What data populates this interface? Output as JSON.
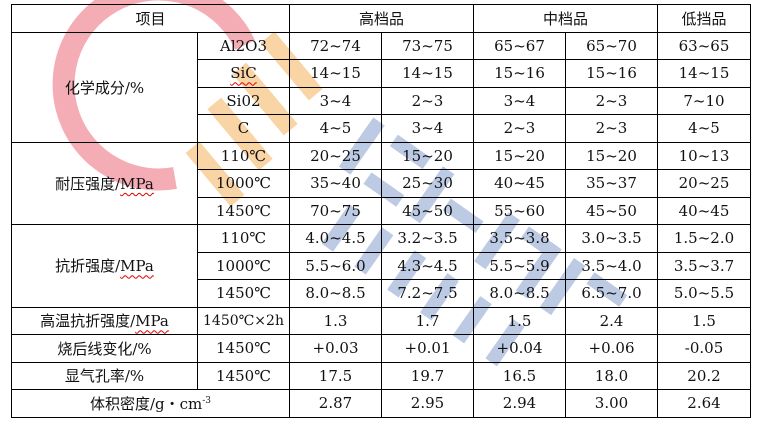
{
  "header": {
    "item": "项目",
    "high": "高档品",
    "mid": "中档品",
    "low": "低挡品"
  },
  "groups": {
    "chem": "化学成分/%",
    "crush": "耐压强度/MPa",
    "flex": "抗折强度/MPa"
  },
  "chem_rows": [
    {
      "label": "Al2O3",
      "values": [
        "72~74",
        "73~75",
        "65~67",
        "65~70",
        "63~65"
      ]
    },
    {
      "label": "SiC",
      "values": [
        "14~15",
        "14~15",
        "15~16",
        "15~16",
        "14~15"
      ]
    },
    {
      "label": "Si02",
      "values": [
        "3~4",
        "2~3",
        "3~4",
        "2~3",
        "7~10"
      ]
    },
    {
      "label": "C",
      "values": [
        "4~5",
        "3~4",
        "2~3",
        "2~3",
        "4~5"
      ]
    }
  ],
  "crush_rows": [
    {
      "label": "110℃",
      "values": [
        "20~25",
        "15~20",
        "15~20",
        "15~20",
        "10~13"
      ]
    },
    {
      "label": "1000℃",
      "values": [
        "35~40",
        "25~30",
        "40~45",
        "35~37",
        "20~25"
      ]
    },
    {
      "label": "1450℃",
      "values": [
        "70~75",
        "45~50",
        "55~60",
        "45~50",
        "40~45"
      ]
    }
  ],
  "flex_rows": [
    {
      "label": "110℃",
      "values": [
        "4.0~4.5",
        "3.2~3.5",
        "3.5~3.8",
        "3.0~3.5",
        "1.5~2.0"
      ]
    },
    {
      "label": "1000℃",
      "values": [
        "5.5~6.0",
        "4.3~4.5",
        "5.5~5.9",
        "3.5~4.0",
        "3.5~3.7"
      ]
    },
    {
      "label": "1450℃",
      "values": [
        "8.0~8.5",
        "7.2~7.5",
        "8.0~8.5",
        "6.5~7.0",
        "5.0~5.5"
      ]
    }
  ],
  "single_rows": [
    {
      "label": "高温抗折强度/MPa",
      "cond": "1450℃×2h",
      "values": [
        "1.3",
        "1.7",
        "1.5",
        "2.4",
        "1.5"
      ]
    },
    {
      "label": "烧后线变化/%",
      "cond": "1450℃",
      "values": [
        "+0.03",
        "+0.01",
        "+0.04",
        "+0.06",
        "-0.05"
      ]
    },
    {
      "label": "显气孔率/%",
      "cond": "1450℃",
      "values": [
        "17.5",
        "19.7",
        "16.5",
        "18.0",
        "20.2"
      ]
    }
  ],
  "density": {
    "label": "体积密度/g・cm",
    "sup": "-3",
    "values": [
      "2.87",
      "2.95",
      "2.94",
      "3.00",
      "2.64"
    ]
  },
  "watermark": {
    "text": "JUDAXINCAI",
    "colors": {
      "red": "#f08a95",
      "orange": "#f7c27e",
      "blue": "#9fb3d9"
    }
  }
}
